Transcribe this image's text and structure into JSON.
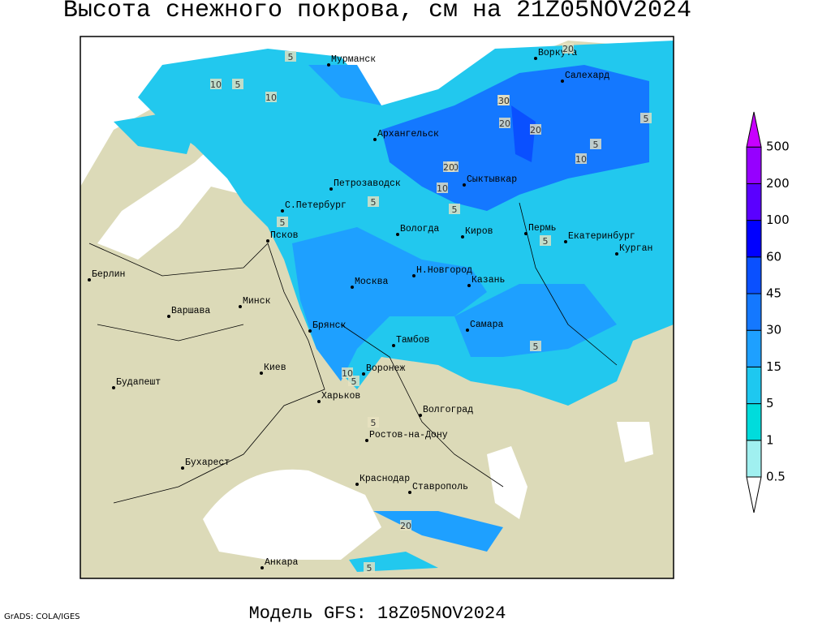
{
  "title": "Высота снежного покрова, см на 21Z05NOV2024",
  "footer": {
    "credit": "GrADS: COLA/IGES",
    "model": "Модель GFS: 18Z05NOV2024"
  },
  "cities": [
    "Мурманск",
    "Воркута",
    "Салехард",
    "Архангельск",
    "Сыктывкар",
    "Петрозаводск",
    "С.Петербург",
    "Вологда",
    "Киров",
    "Пермь",
    "Екатеринбург",
    "Курган",
    "Псков",
    "Берлин",
    "Н.Новгород",
    "Москва",
    "Казань",
    "Минск",
    "Варшава",
    "Самара",
    "Брянск",
    "Тамбов",
    "Киев",
    "Воронеж",
    "Будапешт",
    "Харьков",
    "Волгоград",
    "Ростов-на-Дону",
    "Бухарест",
    "Краснодар",
    "Ставрополь",
    "Анкара"
  ],
  "contour_labels": [
    5,
    10,
    5,
    10,
    20,
    20,
    20,
    20,
    30,
    20,
    10,
    5,
    5,
    10,
    20,
    5,
    5,
    5,
    5,
    5,
    5,
    10,
    5,
    20,
    5
  ],
  "legend": {
    "levels": [
      0.5,
      1,
      5,
      15,
      30,
      45,
      60,
      100,
      200,
      500
    ],
    "colors": [
      "#ffffff",
      "#a0f0f0",
      "#00dcdc",
      "#1ec8f0",
      "#1ea0ff",
      "#1478ff",
      "#0a50ff",
      "#0000ff",
      "#5a00ff",
      "#9600ff",
      "#c800ff"
    ]
  }
}
